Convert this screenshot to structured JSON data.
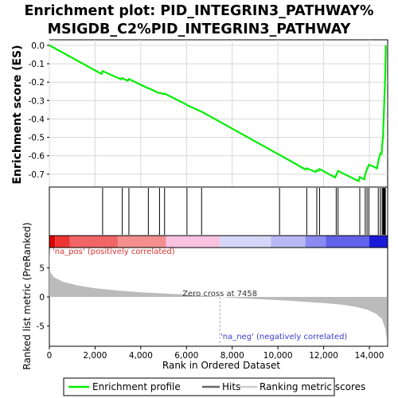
{
  "title_line1": "Enrichment plot: PID_INTEGRIN3_PATHWAY%",
  "title_line2": "MSIGDB_C2%PID_INTEGRIN3_PATHWAY",
  "ylabel_es": "Enrichment score (ES)",
  "ylabel_rank": "Ranked list metric (PreRanked)",
  "xlabel": "Rank in Ordered Dataset",
  "label_pos": "'na_pos' (positively correlated)",
  "label_neg": "'na_neg' (negatively correlated)",
  "label_zero": "Zero cross at 7458",
  "legend": {
    "enrichment": "Enrichment profile",
    "hits": "Hits",
    "metric": "Ranking metric scores"
  },
  "colors": {
    "es_line": "#00ee00",
    "hits": "#000000",
    "metric_fill": "#bbbbbb",
    "pos_red": "#ff0000",
    "neg_blue": "#0000ff",
    "zero_line": "#aaaaaa"
  },
  "chart_data": {
    "type": "line",
    "x_range": [
      0,
      14800
    ],
    "x_ticks": [
      "0",
      "2,000",
      "4,000",
      "6,000",
      "8,000",
      "10,000",
      "12,000",
      "14,000"
    ],
    "x_tick_values": [
      0,
      2000,
      4000,
      6000,
      8000,
      10000,
      12000,
      14000
    ],
    "es_ylim": [
      -0.77,
      0.03
    ],
    "es_ticks": [
      "0.0",
      "-0.1",
      "-0.2",
      "-0.3",
      "-0.4",
      "-0.5",
      "-0.6",
      "-0.7"
    ],
    "es_tick_values": [
      0,
      -0.1,
      -0.2,
      -0.3,
      -0.4,
      -0.5,
      -0.6,
      -0.7
    ],
    "metric_ylim": [
      -8.5,
      8.5
    ],
    "metric_ticks": [
      "5",
      "0",
      "-5"
    ],
    "metric_tick_values": [
      5,
      0,
      -5
    ],
    "zero_cross": 7458,
    "total_rank": 14800,
    "hits": [
      2330,
      3190,
      3480,
      4330,
      4820,
      5040,
      6020,
      6660,
      10070,
      11260,
      11700,
      11820,
      12550,
      12630,
      13580,
      13820,
      13900,
      13980,
      14390,
      14480,
      14560,
      14600,
      14620,
      14640,
      14660,
      14680,
      14700
    ],
    "es_points": [
      [
        0,
        0.0
      ],
      [
        2280,
        -0.155
      ],
      [
        2330,
        -0.14
      ],
      [
        3140,
        -0.185
      ],
      [
        3190,
        -0.178
      ],
      [
        3430,
        -0.193
      ],
      [
        3480,
        -0.183
      ],
      [
        4280,
        -0.231
      ],
      [
        4330,
        -0.232
      ],
      [
        4770,
        -0.258
      ],
      [
        4820,
        -0.258
      ],
      [
        4990,
        -0.265
      ],
      [
        5040,
        -0.262
      ],
      [
        5970,
        -0.32
      ],
      [
        6020,
        -0.325
      ],
      [
        6610,
        -0.358
      ],
      [
        6660,
        -0.36
      ],
      [
        10020,
        -0.592
      ],
      [
        10070,
        -0.595
      ],
      [
        11210,
        -0.675
      ],
      [
        11260,
        -0.668
      ],
      [
        11650,
        -0.688
      ],
      [
        11700,
        -0.678
      ],
      [
        11770,
        -0.682
      ],
      [
        11820,
        -0.672
      ],
      [
        12500,
        -0.718
      ],
      [
        12550,
        -0.705
      ],
      [
        12630,
        -0.682
      ],
      [
        13530,
        -0.738
      ],
      [
        13580,
        -0.715
      ],
      [
        13780,
        -0.728
      ],
      [
        13820,
        -0.7
      ],
      [
        13900,
        -0.672
      ],
      [
        13980,
        -0.648
      ],
      [
        14340,
        -0.668
      ],
      [
        14390,
        -0.63
      ],
      [
        14480,
        -0.588
      ],
      [
        14540,
        -0.59
      ],
      [
        14560,
        -0.545
      ],
      [
        14600,
        -0.49
      ],
      [
        14620,
        -0.42
      ],
      [
        14640,
        -0.35
      ],
      [
        14660,
        -0.28
      ],
      [
        14680,
        -0.21
      ],
      [
        14700,
        -0.14
      ],
      [
        14720,
        0.002
      ]
    ],
    "metric_profile": [
      [
        0,
        8.4
      ],
      [
        40,
        4.3
      ],
      [
        200,
        3.4
      ],
      [
        600,
        2.6
      ],
      [
        1200,
        2.0
      ],
      [
        2000,
        1.5
      ],
      [
        3000,
        1.1
      ],
      [
        4000,
        0.8
      ],
      [
        5000,
        0.6
      ],
      [
        6000,
        0.4
      ],
      [
        7000,
        0.15
      ],
      [
        7458,
        0.0
      ],
      [
        8000,
        -0.15
      ],
      [
        9000,
        -0.35
      ],
      [
        10000,
        -0.55
      ],
      [
        11000,
        -0.8
      ],
      [
        12000,
        -1.05
      ],
      [
        12800,
        -1.35
      ],
      [
        13400,
        -1.7
      ],
      [
        13900,
        -2.2
      ],
      [
        14300,
        -2.9
      ],
      [
        14550,
        -3.8
      ],
      [
        14700,
        -5.5
      ],
      [
        14790,
        -8.0
      ]
    ],
    "color_bar": [
      {
        "from": 0,
        "to": 250,
        "color": "#dd0000"
      },
      {
        "from": 250,
        "to": 900,
        "color": "#ee3333"
      },
      {
        "from": 900,
        "to": 3000,
        "color": "#f06565"
      },
      {
        "from": 3000,
        "to": 5100,
        "color": "#f58e8e"
      },
      {
        "from": 5100,
        "to": 7458,
        "color": "#f8c2e0"
      },
      {
        "from": 7458,
        "to": 9700,
        "color": "#d6d6f8"
      },
      {
        "from": 9700,
        "to": 11200,
        "color": "#b8b8f4"
      },
      {
        "from": 11200,
        "to": 12100,
        "color": "#8a8af0"
      },
      {
        "from": 12100,
        "to": 14000,
        "color": "#6161ea"
      },
      {
        "from": 14000,
        "to": 14800,
        "color": "#1a1ad8"
      }
    ]
  }
}
